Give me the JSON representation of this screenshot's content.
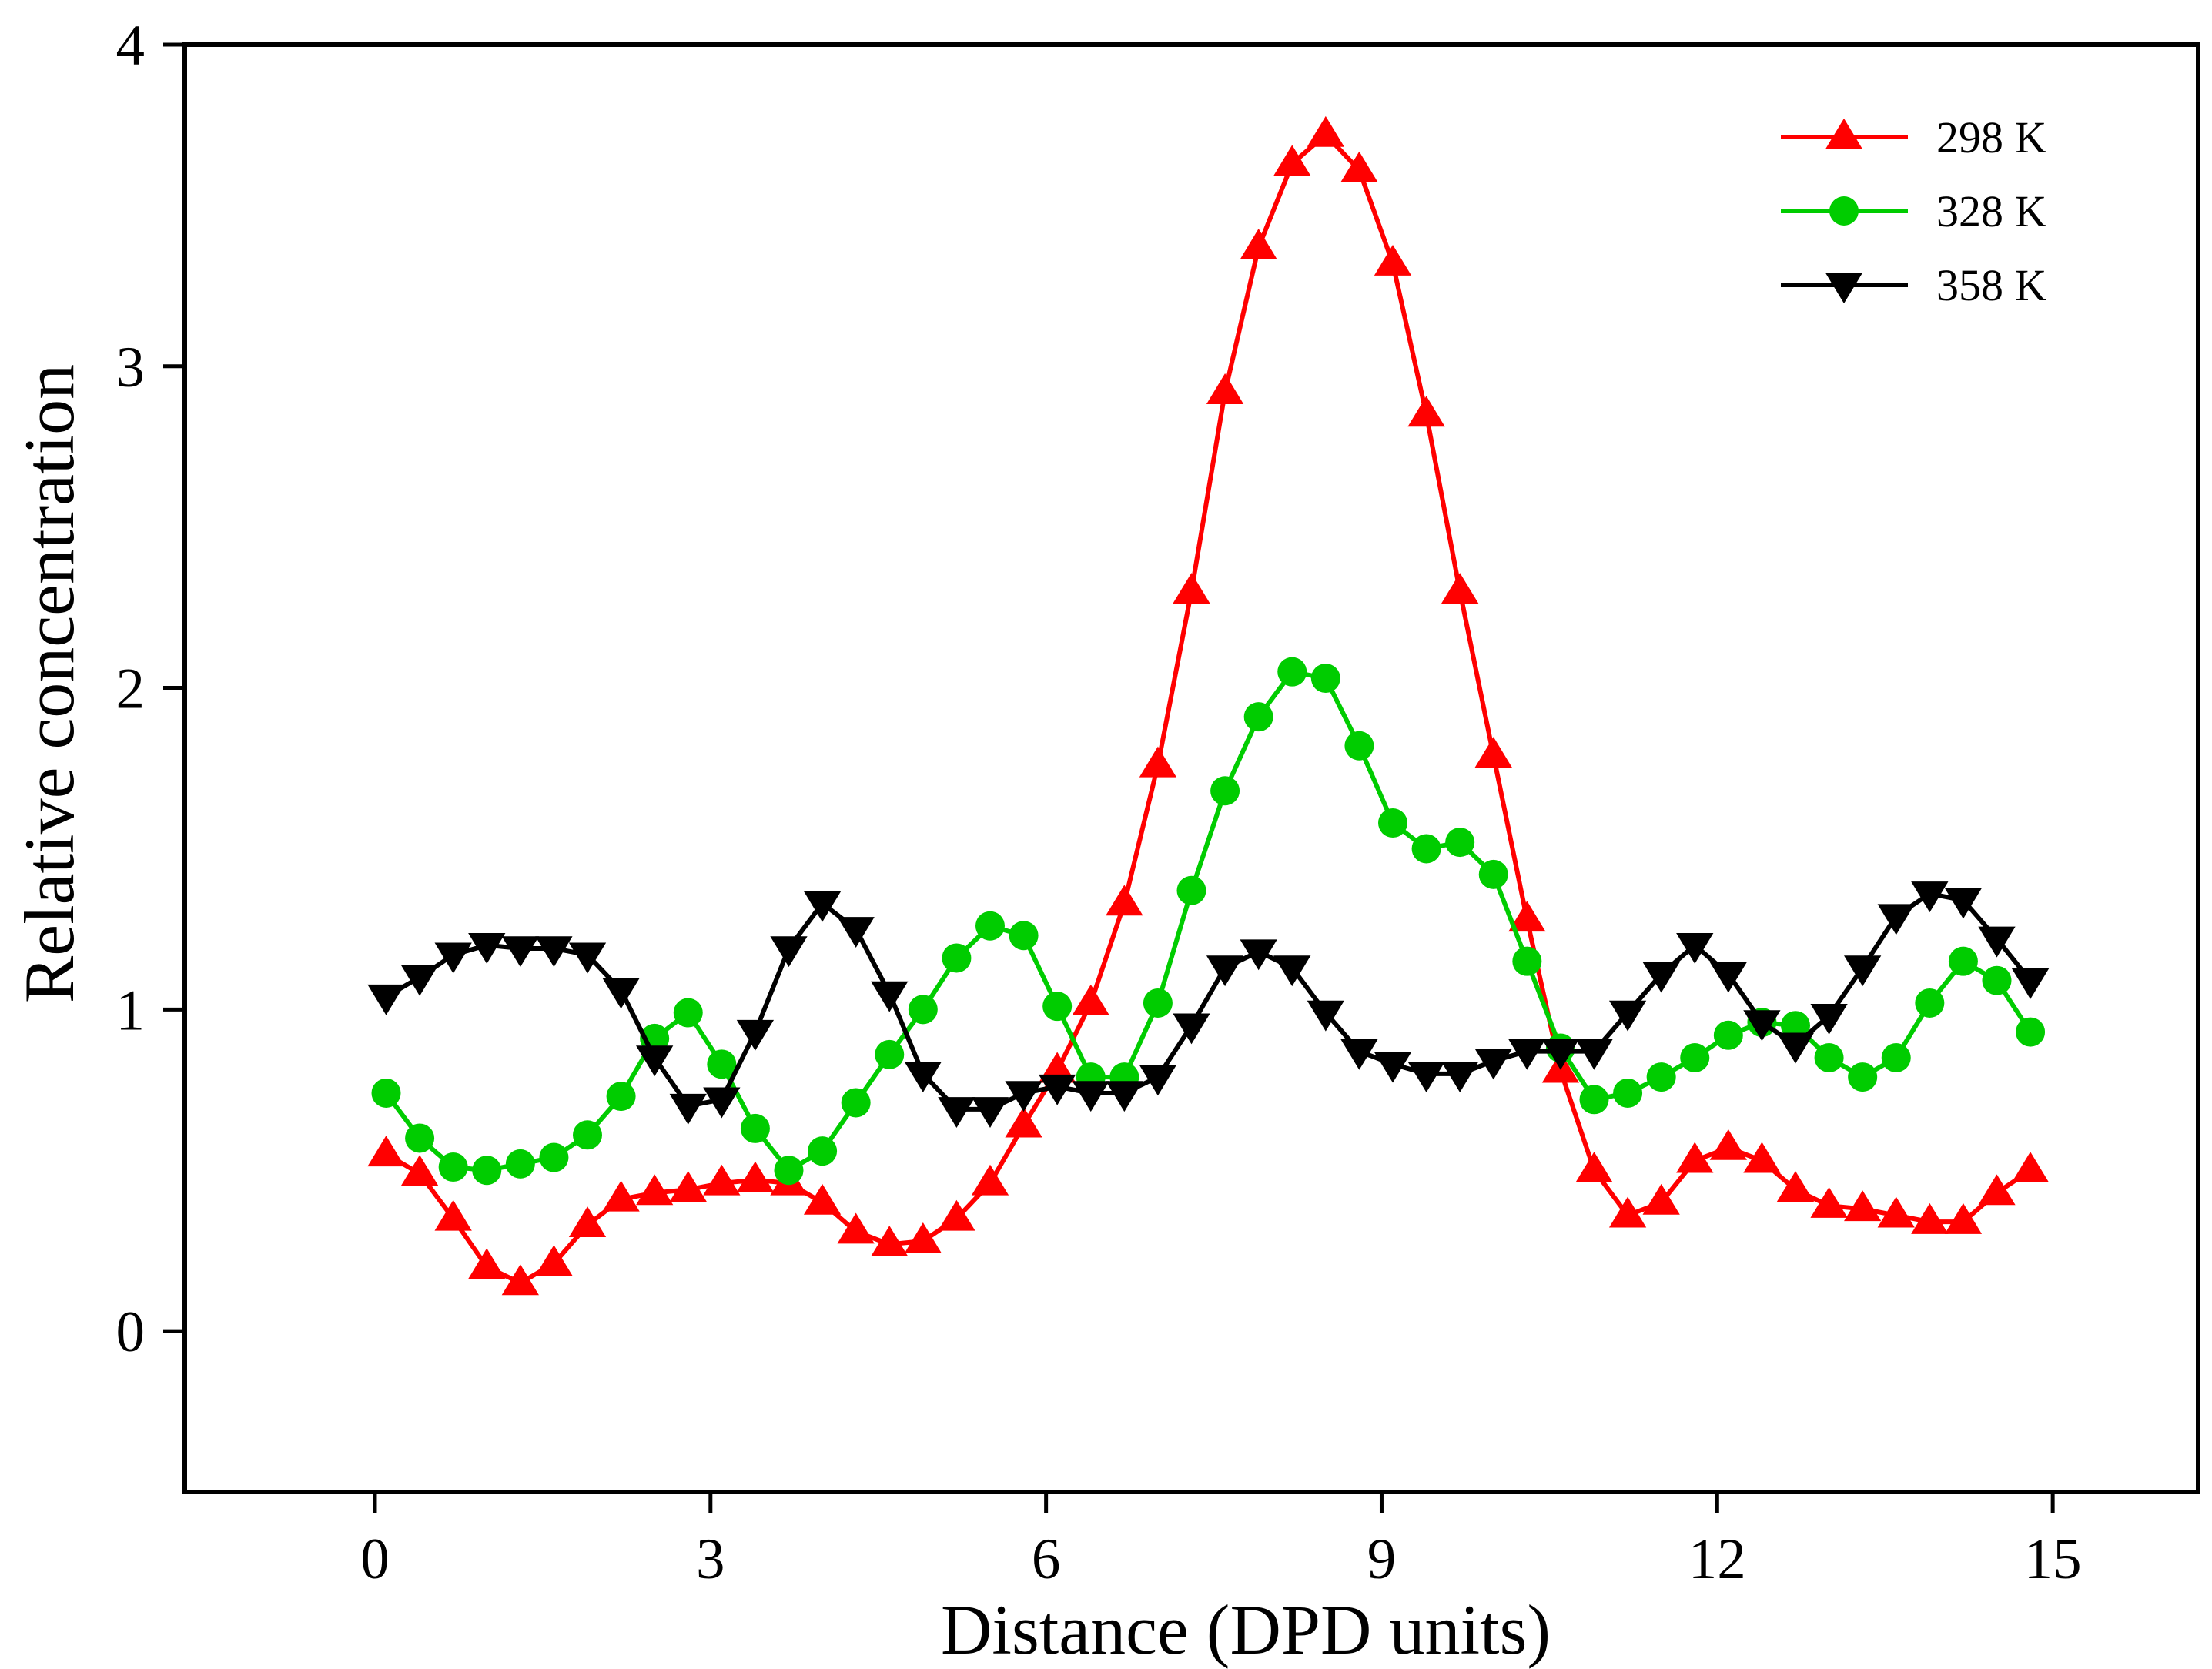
{
  "chart_data": {
    "type": "line",
    "title": "",
    "xlabel": "Distance (DPD units)",
    "ylabel": "Relative concentration",
    "xlim": [
      -1.7,
      16.3
    ],
    "ylim": [
      -0.5,
      4
    ],
    "xticks": [
      0,
      3,
      6,
      9,
      12,
      15
    ],
    "yticks": [
      0,
      1,
      2,
      3,
      4
    ],
    "grid": false,
    "legend_position": "top-right",
    "x": [
      0.1,
      0.4,
      0.7,
      1.0,
      1.3,
      1.6,
      1.9,
      2.2,
      2.5,
      2.8,
      3.1,
      3.4,
      3.7,
      4.0,
      4.3,
      4.6,
      4.9,
      5.2,
      5.5,
      5.8,
      6.1,
      6.4,
      6.7,
      7.0,
      7.3,
      7.6,
      7.9,
      8.2,
      8.5,
      8.8,
      9.1,
      9.4,
      9.7,
      10.0,
      10.3,
      10.6,
      10.9,
      11.2,
      11.5,
      11.8,
      12.1,
      12.4,
      12.7,
      13.0,
      13.3,
      13.6,
      13.9,
      14.2,
      14.5,
      14.8
    ],
    "series": [
      {
        "name": "298 K",
        "color": "#ff0000",
        "marker": "triangle-up",
        "values": [
          0.55,
          0.49,
          0.35,
          0.2,
          0.15,
          0.21,
          0.33,
          0.41,
          0.43,
          0.44,
          0.46,
          0.47,
          0.46,
          0.4,
          0.31,
          0.27,
          0.28,
          0.35,
          0.46,
          0.64,
          0.81,
          1.02,
          1.33,
          1.76,
          2.3,
          2.92,
          3.37,
          3.63,
          3.72,
          3.61,
          3.32,
          2.85,
          2.3,
          1.79,
          1.28,
          0.81,
          0.5,
          0.36,
          0.4,
          0.53,
          0.57,
          0.53,
          0.44,
          0.39,
          0.38,
          0.36,
          0.34,
          0.34,
          0.43,
          0.5
        ]
      },
      {
        "name": "328 K",
        "color": "#00cc00",
        "marker": "circle",
        "values": [
          0.74,
          0.6,
          0.51,
          0.5,
          0.52,
          0.54,
          0.61,
          0.73,
          0.91,
          0.99,
          0.83,
          0.63,
          0.5,
          0.56,
          0.71,
          0.86,
          1.0,
          1.16,
          1.26,
          1.23,
          1.01,
          0.79,
          0.79,
          1.02,
          1.37,
          1.68,
          1.91,
          2.05,
          2.03,
          1.82,
          1.58,
          1.5,
          1.52,
          1.42,
          1.15,
          0.88,
          0.72,
          0.74,
          0.79,
          0.85,
          0.92,
          0.96,
          0.95,
          0.85,
          0.79,
          0.85,
          1.02,
          1.15,
          1.09,
          0.93
        ]
      },
      {
        "name": "358 K",
        "color": "#000000",
        "marker": "triangle-down",
        "values": [
          1.04,
          1.1,
          1.17,
          1.2,
          1.19,
          1.19,
          1.17,
          1.06,
          0.85,
          0.7,
          0.72,
          0.93,
          1.19,
          1.33,
          1.25,
          1.05,
          0.8,
          0.69,
          0.69,
          0.74,
          0.76,
          0.74,
          0.74,
          0.79,
          0.95,
          1.13,
          1.18,
          1.13,
          0.99,
          0.87,
          0.83,
          0.8,
          0.8,
          0.84,
          0.87,
          0.87,
          0.87,
          0.99,
          1.11,
          1.2,
          1.11,
          0.96,
          0.89,
          0.98,
          1.13,
          1.29,
          1.36,
          1.34,
          1.22,
          1.09
        ]
      }
    ]
  }
}
